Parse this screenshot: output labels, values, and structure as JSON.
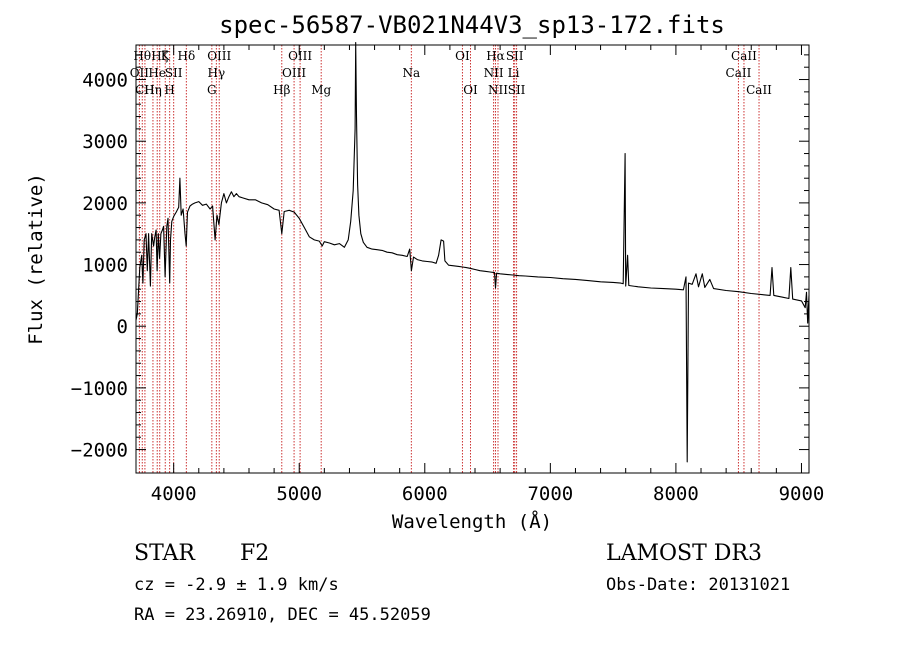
{
  "colors": {
    "line": "#000000",
    "marker": "#cc3333",
    "axis": "#000000",
    "background": "#ffffff"
  },
  "info": {
    "object_class": "STAR",
    "subclass": "F2",
    "survey": "LAMOST DR3",
    "cz": "cz = -2.9 ± 1.9 km/s",
    "obs_date": "Obs-Date: 20131021",
    "radec": "RA =  23.26910, DEC =  45.52059"
  },
  "chart_data": {
    "type": "line",
    "title": "spec-56587-VB021N44V3_sp13-172.fits",
    "xlabel": "Wavelength (Å)",
    "ylabel": "Flux (relative)",
    "xlim": [
      3700,
      9060
    ],
    "ylim": [
      -2380,
      4560
    ],
    "xticks": [
      4000,
      5000,
      6000,
      7000,
      8000,
      9000
    ],
    "yticks": [
      -2000,
      -1000,
      0,
      1000,
      2000,
      3000,
      4000
    ],
    "grid": false,
    "series": [
      {
        "points": [
          [
            3700,
            100
          ],
          [
            3710,
            200
          ],
          [
            3720,
            560
          ],
          [
            3730,
            950
          ],
          [
            3745,
            1150
          ],
          [
            3755,
            700
          ],
          [
            3765,
            1400
          ],
          [
            3780,
            1500
          ],
          [
            3790,
            900
          ],
          [
            3800,
            1500
          ],
          [
            3815,
            650
          ],
          [
            3825,
            1500
          ],
          [
            3840,
            1300
          ],
          [
            3850,
            1450
          ],
          [
            3860,
            1560
          ],
          [
            3868,
            900
          ],
          [
            3878,
            1500
          ],
          [
            3888,
            1100
          ],
          [
            3898,
            1500
          ],
          [
            3910,
            1560
          ],
          [
            3920,
            1620
          ],
          [
            3932,
            800
          ],
          [
            3945,
            1620
          ],
          [
            3955,
            1750
          ],
          [
            3962,
            1200
          ],
          [
            3968,
            700
          ],
          [
            3975,
            1400
          ],
          [
            3985,
            1700
          ],
          [
            4000,
            1780
          ],
          [
            4020,
            1850
          ],
          [
            4040,
            1930
          ],
          [
            4050,
            2400
          ],
          [
            4060,
            1800
          ],
          [
            4075,
            1900
          ],
          [
            4090,
            1500
          ],
          [
            4100,
            1300
          ],
          [
            4110,
            1850
          ],
          [
            4130,
            1950
          ],
          [
            4150,
            1980
          ],
          [
            4170,
            2000
          ],
          [
            4200,
            2020
          ],
          [
            4230,
            1960
          ],
          [
            4260,
            1980
          ],
          [
            4290,
            1900
          ],
          [
            4310,
            1950
          ],
          [
            4330,
            1400
          ],
          [
            4345,
            1800
          ],
          [
            4360,
            1650
          ],
          [
            4380,
            2000
          ],
          [
            4400,
            2150
          ],
          [
            4420,
            2000
          ],
          [
            4440,
            2100
          ],
          [
            4460,
            2180
          ],
          [
            4480,
            2100
          ],
          [
            4500,
            2150
          ],
          [
            4520,
            2100
          ],
          [
            4550,
            2080
          ],
          [
            4600,
            2050
          ],
          [
            4650,
            2050
          ],
          [
            4700,
            2000
          ],
          [
            4750,
            1970
          ],
          [
            4800,
            1900
          ],
          [
            4840,
            1880
          ],
          [
            4861,
            1500
          ],
          [
            4880,
            1860
          ],
          [
            4920,
            1880
          ],
          [
            4960,
            1850
          ],
          [
            5000,
            1750
          ],
          [
            5040,
            1600
          ],
          [
            5080,
            1450
          ],
          [
            5120,
            1400
          ],
          [
            5160,
            1380
          ],
          [
            5183,
            1300
          ],
          [
            5200,
            1370
          ],
          [
            5240,
            1350
          ],
          [
            5280,
            1320
          ],
          [
            5320,
            1340
          ],
          [
            5360,
            1280
          ],
          [
            5390,
            1400
          ],
          [
            5410,
            1700
          ],
          [
            5430,
            2200
          ],
          [
            5445,
            3200
          ],
          [
            5450,
            4600
          ],
          [
            5456,
            3400
          ],
          [
            5465,
            2300
          ],
          [
            5475,
            1800
          ],
          [
            5490,
            1500
          ],
          [
            5510,
            1360
          ],
          [
            5540,
            1280
          ],
          [
            5580,
            1250
          ],
          [
            5620,
            1240
          ],
          [
            5660,
            1230
          ],
          [
            5700,
            1200
          ],
          [
            5740,
            1190
          ],
          [
            5780,
            1160
          ],
          [
            5820,
            1150
          ],
          [
            5860,
            1130
          ],
          [
            5880,
            1250
          ],
          [
            5893,
            900
          ],
          [
            5910,
            1120
          ],
          [
            5940,
            1080
          ],
          [
            5980,
            1060
          ],
          [
            6020,
            1050
          ],
          [
            6060,
            1040
          ],
          [
            6090,
            1020
          ],
          [
            6110,
            1150
          ],
          [
            6130,
            1400
          ],
          [
            6150,
            1380
          ],
          [
            6160,
            1060
          ],
          [
            6190,
            990
          ],
          [
            6230,
            980
          ],
          [
            6270,
            970
          ],
          [
            6300,
            960
          ],
          [
            6330,
            950
          ],
          [
            6360,
            940
          ],
          [
            6400,
            920
          ],
          [
            6440,
            900
          ],
          [
            6480,
            890
          ],
          [
            6520,
            880
          ],
          [
            6555,
            870
          ],
          [
            6563,
            620
          ],
          [
            6572,
            860
          ],
          [
            6600,
            850
          ],
          [
            6650,
            840
          ],
          [
            6700,
            830
          ],
          [
            6750,
            820
          ],
          [
            6800,
            815
          ],
          [
            6900,
            800
          ],
          [
            7000,
            790
          ],
          [
            7100,
            770
          ],
          [
            7200,
            760
          ],
          [
            7300,
            740
          ],
          [
            7400,
            720
          ],
          [
            7500,
            710
          ],
          [
            7560,
            700
          ],
          [
            7580,
            690
          ],
          [
            7595,
            2800
          ],
          [
            7600,
            650
          ],
          [
            7615,
            1150
          ],
          [
            7625,
            660
          ],
          [
            7700,
            640
          ],
          [
            7800,
            620
          ],
          [
            7900,
            610
          ],
          [
            8000,
            600
          ],
          [
            8060,
            590
          ],
          [
            8080,
            800
          ],
          [
            8090,
            -2200
          ],
          [
            8100,
            700
          ],
          [
            8130,
            680
          ],
          [
            8160,
            850
          ],
          [
            8180,
            640
          ],
          [
            8210,
            850
          ],
          [
            8230,
            630
          ],
          [
            8270,
            760
          ],
          [
            8300,
            610
          ],
          [
            8400,
            580
          ],
          [
            8500,
            560
          ],
          [
            8600,
            530
          ],
          [
            8700,
            510
          ],
          [
            8750,
            500
          ],
          [
            8765,
            950
          ],
          [
            8780,
            500
          ],
          [
            8850,
            470
          ],
          [
            8900,
            450
          ],
          [
            8915,
            950
          ],
          [
            8930,
            440
          ],
          [
            9000,
            410
          ],
          [
            9030,
            300
          ],
          [
            9040,
            550
          ],
          [
            9050,
            50
          ],
          [
            9060,
            500
          ]
        ]
      }
    ],
    "line_markers": [
      {
        "wavelength": 3727,
        "label": "OII",
        "row": 2
      },
      {
        "wavelength": 3750,
        "label": "Hθ",
        "row": 1
      },
      {
        "wavelength": 3771,
        "label": "CH",
        "row": 3
      },
      {
        "wavelength": 3835,
        "label": "Hη",
        "row": 3
      },
      {
        "wavelength": 3869,
        "label": "He",
        "row": 2
      },
      {
        "wavelength": 3889,
        "label": "Hζ",
        "row": 1
      },
      {
        "wavelength": 3933,
        "label": "K",
        "row": 1
      },
      {
        "wavelength": 3968,
        "label": "H",
        "row": 3
      },
      {
        "wavelength": 4000,
        "label": "SII",
        "row": 2
      },
      {
        "wavelength": 4101,
        "label": "Hδ",
        "row": 1
      },
      {
        "wavelength": 4304,
        "label": "G",
        "row": 3
      },
      {
        "wavelength": 4340,
        "label": "Hγ",
        "row": 2
      },
      {
        "wavelength": 4363,
        "label": "OIII",
        "row": 1
      },
      {
        "wavelength": 4861,
        "label": "Hβ",
        "row": 3
      },
      {
        "wavelength": 4959,
        "label": "OIII",
        "row": 2
      },
      {
        "wavelength": 5007,
        "label": "OIII",
        "row": 1
      },
      {
        "wavelength": 5175,
        "label": "Mg",
        "row": 3
      },
      {
        "wavelength": 5893,
        "label": "Na",
        "row": 2
      },
      {
        "wavelength": 6300,
        "label": "OI",
        "row": 1
      },
      {
        "wavelength": 6364,
        "label": "OI",
        "row": 3
      },
      {
        "wavelength": 6548,
        "label": "NII",
        "row": 2
      },
      {
        "wavelength": 6563,
        "label": "Hα",
        "row": 1
      },
      {
        "wavelength": 6583,
        "label": "NII",
        "row": 3
      },
      {
        "wavelength": 6707,
        "label": "Li",
        "row": 2
      },
      {
        "wavelength": 6716,
        "label": "SII",
        "row": 1
      },
      {
        "wavelength": 6731,
        "label": "SII",
        "row": 3
      },
      {
        "wavelength": 8498,
        "label": "CaII",
        "row": 2
      },
      {
        "wavelength": 8542,
        "label": "CaII",
        "row": 1
      },
      {
        "wavelength": 8662,
        "label": "CaII",
        "row": 3
      }
    ]
  }
}
